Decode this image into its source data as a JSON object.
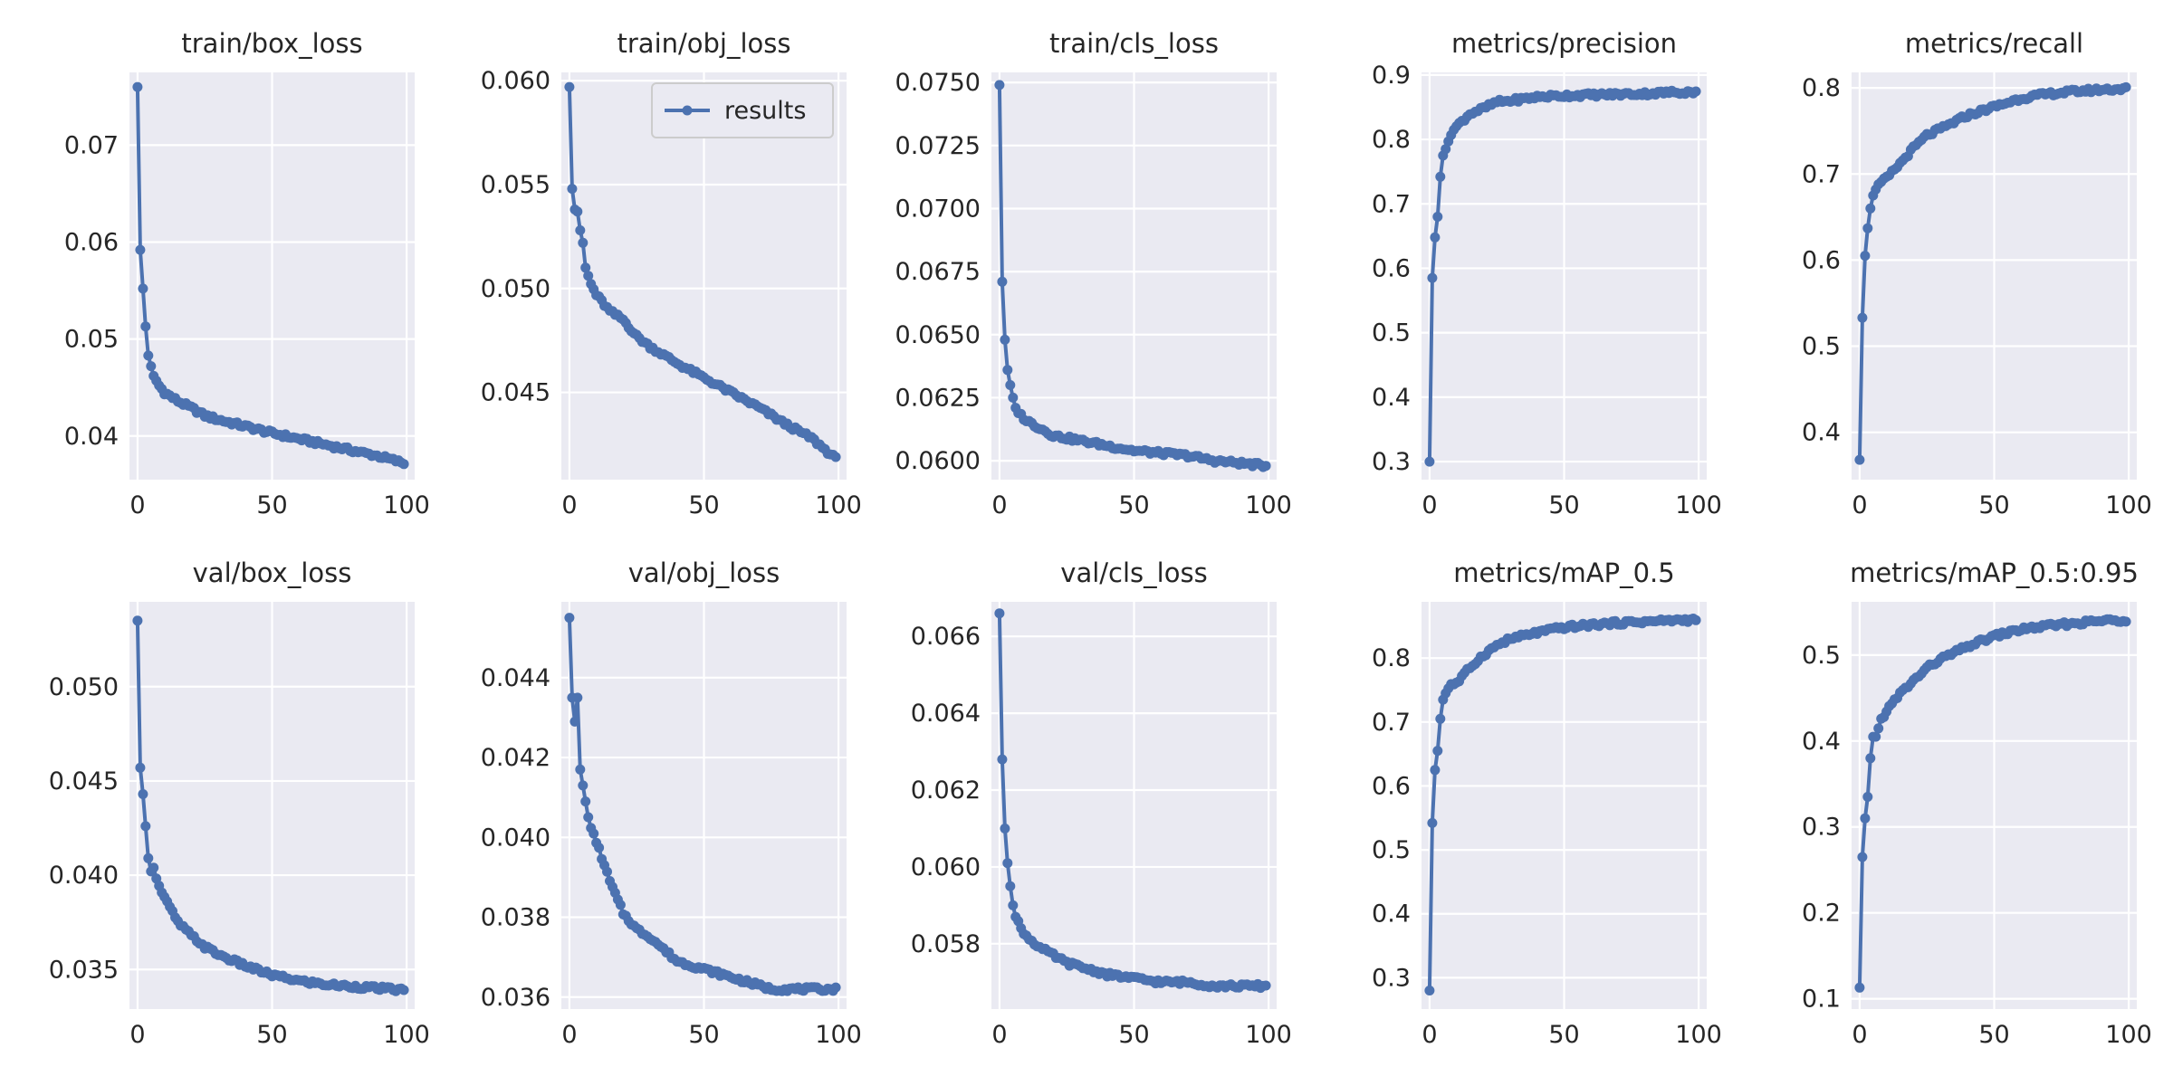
{
  "chart_data": [
    {
      "type": "line",
      "title": "train/box_loss",
      "xlim": [
        -3,
        103
      ],
      "ylim": [
        0.0355,
        0.0775
      ],
      "xticks": [
        0,
        50,
        100
      ],
      "yticks": [
        0.04,
        0.05,
        0.06,
        0.07
      ],
      "ytick_labels": [
        "0.04",
        "0.05",
        "0.06",
        "0.07"
      ],
      "series": [
        {
          "name": "results",
          "anchors": [
            [
              0,
              0.076
            ],
            [
              1,
              0.0592
            ],
            [
              2,
              0.0552
            ],
            [
              3,
              0.0513
            ],
            [
              4,
              0.0483
            ],
            [
              5,
              0.0472
            ],
            [
              6,
              0.0462
            ],
            [
              8,
              0.0452
            ],
            [
              10,
              0.0445
            ],
            [
              15,
              0.0436
            ],
            [
              20,
              0.0429
            ],
            [
              25,
              0.0421
            ],
            [
              30,
              0.0417
            ],
            [
              40,
              0.041
            ],
            [
              50,
              0.0403
            ],
            [
              60,
              0.0397
            ],
            [
              70,
              0.0391
            ],
            [
              80,
              0.0385
            ],
            [
              90,
              0.0379
            ],
            [
              99,
              0.0372
            ]
          ]
        }
      ]
    },
    {
      "type": "line",
      "title": "train/obj_loss",
      "xlim": [
        -3,
        103
      ],
      "ylim": [
        0.0408,
        0.0604
      ],
      "xticks": [
        0,
        50,
        100
      ],
      "yticks": [
        0.045,
        0.05,
        0.055,
        0.06
      ],
      "ytick_labels": [
        "0.045",
        "0.050",
        "0.055",
        "0.060"
      ],
      "legend": {
        "placement": "top-right",
        "entries": [
          "results"
        ]
      },
      "series": [
        {
          "name": "results",
          "anchors": [
            [
              0,
              0.0597
            ],
            [
              1,
              0.0548
            ],
            [
              2,
              0.0538
            ],
            [
              3,
              0.0537
            ],
            [
              4,
              0.0528
            ],
            [
              5,
              0.0522
            ],
            [
              6,
              0.051
            ],
            [
              8,
              0.0502
            ],
            [
              10,
              0.0497
            ],
            [
              15,
              0.0489
            ],
            [
              20,
              0.0485
            ],
            [
              25,
              0.0477
            ],
            [
              30,
              0.0472
            ],
            [
              40,
              0.0464
            ],
            [
              50,
              0.0457
            ],
            [
              60,
              0.045
            ],
            [
              70,
              0.0443
            ],
            [
              80,
              0.0435
            ],
            [
              90,
              0.0428
            ],
            [
              99,
              0.0418
            ]
          ]
        }
      ]
    },
    {
      "type": "line",
      "title": "train/cls_loss",
      "xlim": [
        -3,
        103
      ],
      "ylim": [
        0.05925,
        0.0754
      ],
      "xticks": [
        0,
        50,
        100
      ],
      "yticks": [
        0.06,
        0.0625,
        0.065,
        0.0675,
        0.07,
        0.0725,
        0.075
      ],
      "ytick_labels": [
        "0.0600",
        "0.0625",
        "0.0650",
        "0.0675",
        "0.0700",
        "0.0725",
        "0.0750"
      ],
      "series": [
        {
          "name": "results",
          "anchors": [
            [
              0,
              0.0749
            ],
            [
              1,
              0.0671
            ],
            [
              2,
              0.0648
            ],
            [
              3,
              0.0636
            ],
            [
              4,
              0.063
            ],
            [
              5,
              0.0625
            ],
            [
              6,
              0.0621
            ],
            [
              8,
              0.0618
            ],
            [
              10,
              0.0616
            ],
            [
              15,
              0.0613
            ],
            [
              20,
              0.061
            ],
            [
              30,
              0.0608
            ],
            [
              40,
              0.0606
            ],
            [
              50,
              0.0604
            ],
            [
              60,
              0.0603
            ],
            [
              70,
              0.0602
            ],
            [
              80,
              0.06
            ],
            [
              90,
              0.0599
            ],
            [
              99,
              0.0598
            ]
          ]
        }
      ]
    },
    {
      "type": "line",
      "title": "metrics/precision",
      "xlim": [
        -3,
        103
      ],
      "ylim": [
        0.272,
        0.904
      ],
      "xticks": [
        0,
        50,
        100
      ],
      "yticks": [
        0.3,
        0.4,
        0.5,
        0.6,
        0.7,
        0.8,
        0.9
      ],
      "ytick_labels": [
        "0.3",
        "0.4",
        "0.5",
        "0.6",
        "0.7",
        "0.8",
        "0.9"
      ],
      "series": [
        {
          "name": "results",
          "anchors": [
            [
              0,
              0.3
            ],
            [
              1,
              0.585
            ],
            [
              2,
              0.648
            ],
            [
              3,
              0.68
            ],
            [
              4,
              0.742
            ],
            [
              5,
              0.775
            ],
            [
              6,
              0.785
            ],
            [
              8,
              0.81
            ],
            [
              10,
              0.82
            ],
            [
              15,
              0.84
            ],
            [
              20,
              0.848
            ],
            [
              25,
              0.858
            ],
            [
              30,
              0.86
            ],
            [
              40,
              0.866
            ],
            [
              50,
              0.868
            ],
            [
              60,
              0.869
            ],
            [
              70,
              0.87
            ],
            [
              80,
              0.871
            ],
            [
              90,
              0.873
            ],
            [
              99,
              0.874
            ]
          ]
        }
      ]
    },
    {
      "type": "line",
      "title": "metrics/recall",
      "xlim": [
        -3,
        103
      ],
      "ylim": [
        0.345,
        0.818
      ],
      "xticks": [
        0,
        50,
        100
      ],
      "yticks": [
        0.4,
        0.5,
        0.6,
        0.7,
        0.8
      ],
      "ytick_labels": [
        "0.4",
        "0.5",
        "0.6",
        "0.7",
        "0.8"
      ],
      "series": [
        {
          "name": "results",
          "anchors": [
            [
              0,
              0.368
            ],
            [
              1,
              0.533
            ],
            [
              2,
              0.605
            ],
            [
              3,
              0.637
            ],
            [
              4,
              0.66
            ],
            [
              5,
              0.675
            ],
            [
              6,
              0.682
            ],
            [
              8,
              0.69
            ],
            [
              10,
              0.695
            ],
            [
              15,
              0.712
            ],
            [
              20,
              0.73
            ],
            [
              25,
              0.745
            ],
            [
              30,
              0.752
            ],
            [
              40,
              0.768
            ],
            [
              50,
              0.778
            ],
            [
              60,
              0.788
            ],
            [
              70,
              0.793
            ],
            [
              80,
              0.796
            ],
            [
              90,
              0.798
            ],
            [
              99,
              0.799
            ]
          ]
        }
      ]
    },
    {
      "type": "line",
      "title": "val/box_loss",
      "xlim": [
        -3,
        103
      ],
      "ylim": [
        0.0329,
        0.0545
      ],
      "xticks": [
        0,
        50,
        100
      ],
      "yticks": [
        0.035,
        0.04,
        0.045,
        0.05
      ],
      "ytick_labels": [
        "0.035",
        "0.040",
        "0.045",
        "0.050"
      ],
      "series": [
        {
          "name": "results",
          "anchors": [
            [
              0,
              0.0535
            ],
            [
              1,
              0.0457
            ],
            [
              2,
              0.0443
            ],
            [
              3,
              0.0426
            ],
            [
              4,
              0.0409
            ],
            [
              5,
              0.0402
            ],
            [
              6,
              0.0404
            ],
            [
              8,
              0.0394
            ],
            [
              10,
              0.0388
            ],
            [
              15,
              0.0375
            ],
            [
              20,
              0.0368
            ],
            [
              25,
              0.0362
            ],
            [
              30,
              0.0358
            ],
            [
              40,
              0.0352
            ],
            [
              50,
              0.0347
            ],
            [
              60,
              0.0344
            ],
            [
              70,
              0.0342
            ],
            [
              80,
              0.0341
            ],
            [
              90,
              0.034
            ],
            [
              99,
              0.0339
            ]
          ]
        }
      ]
    },
    {
      "type": "line",
      "title": "val/obj_loss",
      "xlim": [
        -3,
        103
      ],
      "ylim": [
        0.0357,
        0.0459
      ],
      "xticks": [
        0,
        50,
        100
      ],
      "yticks": [
        0.036,
        0.038,
        0.04,
        0.042,
        0.044
      ],
      "ytick_labels": [
        "0.036",
        "0.038",
        "0.040",
        "0.042",
        "0.044"
      ],
      "series": [
        {
          "name": "results",
          "anchors": [
            [
              0,
              0.0455
            ],
            [
              1,
              0.0435
            ],
            [
              2,
              0.0429
            ],
            [
              3,
              0.0435
            ],
            [
              4,
              0.0417
            ],
            [
              5,
              0.0413
            ],
            [
              6,
              0.0409
            ],
            [
              8,
              0.0402
            ],
            [
              10,
              0.0399
            ],
            [
              15,
              0.0389
            ],
            [
              20,
              0.0381
            ],
            [
              25,
              0.0377
            ],
            [
              30,
              0.0375
            ],
            [
              40,
              0.0369
            ],
            [
              50,
              0.0367
            ],
            [
              60,
              0.0365
            ],
            [
              70,
              0.0363
            ],
            [
              75,
              0.0362
            ],
            [
              80,
              0.0362
            ],
            [
              90,
              0.0362
            ],
            [
              99,
              0.0362
            ]
          ]
        }
      ]
    },
    {
      "type": "line",
      "title": "val/cls_loss",
      "xlim": [
        -3,
        103
      ],
      "ylim": [
        0.0563,
        0.0669
      ],
      "xticks": [
        0,
        50,
        100
      ],
      "yticks": [
        0.058,
        0.06,
        0.062,
        0.064,
        0.066
      ],
      "ytick_labels": [
        "0.058",
        "0.060",
        "0.062",
        "0.064",
        "0.066"
      ],
      "series": [
        {
          "name": "results",
          "anchors": [
            [
              0,
              0.0666
            ],
            [
              1,
              0.0628
            ],
            [
              2,
              0.061
            ],
            [
              3,
              0.0601
            ],
            [
              4,
              0.0595
            ],
            [
              5,
              0.059
            ],
            [
              6,
              0.0587
            ],
            [
              8,
              0.0584
            ],
            [
              10,
              0.0582
            ],
            [
              15,
              0.0579
            ],
            [
              20,
              0.0577
            ],
            [
              25,
              0.0575
            ],
            [
              30,
              0.0574
            ],
            [
              40,
              0.0572
            ],
            [
              50,
              0.0571
            ],
            [
              60,
              0.057
            ],
            [
              70,
              0.057
            ],
            [
              80,
              0.0569
            ],
            [
              90,
              0.0569
            ],
            [
              99,
              0.0569
            ]
          ]
        }
      ]
    },
    {
      "type": "line",
      "title": "metrics/mAP_0.5",
      "xlim": [
        -3,
        103
      ],
      "ylim": [
        0.251,
        0.888
      ],
      "xticks": [
        0,
        50,
        100
      ],
      "yticks": [
        0.3,
        0.4,
        0.5,
        0.6,
        0.7,
        0.8
      ],
      "ytick_labels": [
        "0.3",
        "0.4",
        "0.5",
        "0.6",
        "0.7",
        "0.8"
      ],
      "series": [
        {
          "name": "results",
          "anchors": [
            [
              0,
              0.28
            ],
            [
              1,
              0.542
            ],
            [
              2,
              0.625
            ],
            [
              3,
              0.655
            ],
            [
              4,
              0.705
            ],
            [
              5,
              0.735
            ],
            [
              6,
              0.745
            ],
            [
              8,
              0.76
            ],
            [
              10,
              0.76
            ],
            [
              15,
              0.785
            ],
            [
              20,
              0.805
            ],
            [
              25,
              0.82
            ],
            [
              30,
              0.83
            ],
            [
              40,
              0.84
            ],
            [
              50,
              0.848
            ],
            [
              60,
              0.852
            ],
            [
              70,
              0.855
            ],
            [
              80,
              0.857
            ],
            [
              90,
              0.859
            ],
            [
              99,
              0.86
            ]
          ]
        }
      ]
    },
    {
      "type": "line",
      "title": "metrics/mAP_0.5:0.95",
      "xlim": [
        -3,
        103
      ],
      "ylim": [
        0.088,
        0.562
      ],
      "xticks": [
        0,
        50,
        100
      ],
      "yticks": [
        0.1,
        0.2,
        0.3,
        0.4,
        0.5
      ],
      "ytick_labels": [
        "0.1",
        "0.2",
        "0.3",
        "0.4",
        "0.5"
      ],
      "series": [
        {
          "name": "results",
          "anchors": [
            [
              0,
              0.113
            ],
            [
              1,
              0.265
            ],
            [
              2,
              0.31
            ],
            [
              3,
              0.335
            ],
            [
              4,
              0.38
            ],
            [
              5,
              0.405
            ],
            [
              6,
              0.405
            ],
            [
              8,
              0.425
            ],
            [
              10,
              0.435
            ],
            [
              15,
              0.455
            ],
            [
              20,
              0.47
            ],
            [
              25,
              0.485
            ],
            [
              30,
              0.495
            ],
            [
              40,
              0.51
            ],
            [
              50,
              0.522
            ],
            [
              60,
              0.53
            ],
            [
              70,
              0.534
            ],
            [
              80,
              0.537
            ],
            [
              90,
              0.54
            ],
            [
              99,
              0.541
            ]
          ]
        }
      ]
    }
  ],
  "style": {
    "background": "#ffffff",
    "axes_facecolor": "#eaeaf2",
    "grid_color": "#ffffff",
    "line_color": "#4c72b0",
    "text_color": "#262626"
  }
}
